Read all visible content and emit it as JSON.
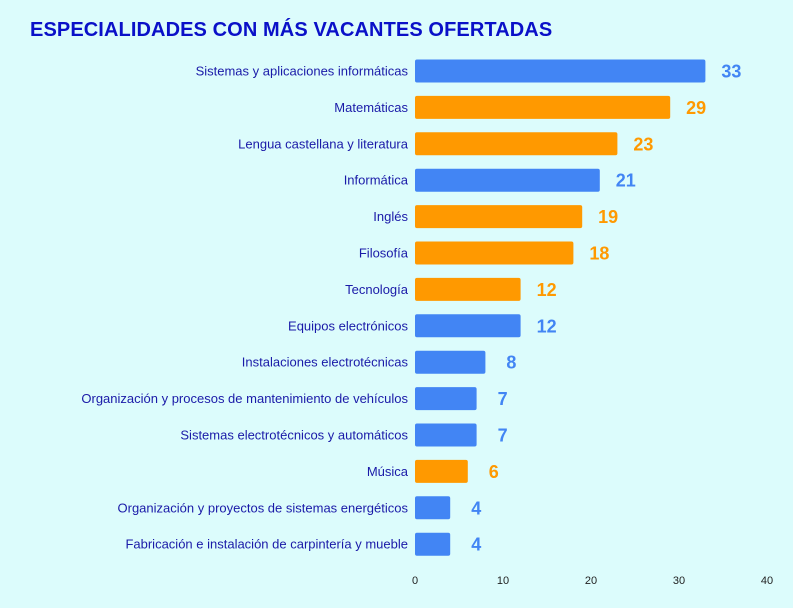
{
  "chart_data": {
    "type": "bar",
    "orientation": "horizontal",
    "title": "ESPECIALIDADES CON MÁS VACANTES OFERTADAS",
    "xlabel": "",
    "ylabel": "",
    "xlim": [
      0,
      40
    ],
    "xticks": [
      "0",
      "10",
      "20",
      "30",
      "40"
    ],
    "grid": false,
    "legend": "none",
    "colors": {
      "blue": "#4285f4",
      "orange": "#ff9900"
    },
    "categories": [
      "Sistemas y aplicaciones informáticas",
      "Matemáticas",
      "Lengua castellana y literatura",
      "Informática",
      "Inglés",
      "Filosofía",
      "Tecnología",
      "Equipos electrónicos",
      "Instalaciones electrotécnicas",
      "Organización y procesos de mantenimiento de vehículos",
      "Sistemas electrotécnicos y automáticos",
      "Música",
      "Organización y proyectos de sistemas energéticos",
      "Fabricación e instalación de carpintería y mueble"
    ],
    "values": [
      33,
      29,
      23,
      21,
      19,
      18,
      12,
      12,
      8,
      7,
      7,
      6,
      4,
      4
    ],
    "bar_colors": [
      "blue",
      "orange",
      "orange",
      "blue",
      "orange",
      "orange",
      "orange",
      "blue",
      "blue",
      "blue",
      "blue",
      "orange",
      "blue",
      "blue"
    ]
  }
}
